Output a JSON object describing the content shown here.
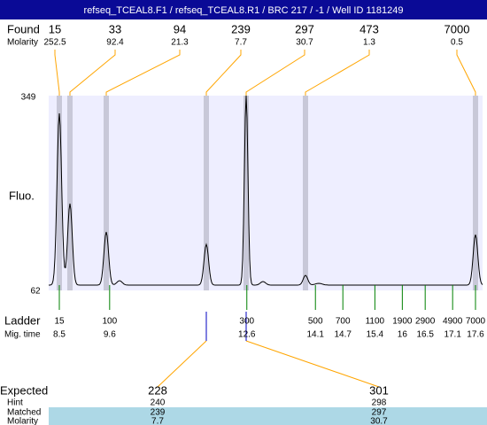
{
  "header": {
    "title": "refseq_TCEAL8.F1 / refseq_TCEAL8.R1 / BRC 217 / -1 / Well ID 1181249"
  },
  "found": {
    "label": "Found",
    "molarity_label": "Molarity",
    "peaks": [
      {
        "size": 15,
        "molarity": 252.5
      },
      {
        "size": 33,
        "molarity": 92.4
      },
      {
        "size": 94,
        "molarity": 21.3
      },
      {
        "size": 239,
        "molarity": 7.7
      },
      {
        "size": 297,
        "molarity": 30.7
      },
      {
        "size": 473,
        "molarity": 1.3
      },
      {
        "size": 7000,
        "molarity": 0.5
      }
    ]
  },
  "plot": {
    "y_label": "Fluo.",
    "y_max": 349,
    "y_min": 62
  },
  "ladder": {
    "label": "Ladder",
    "time_label": "Mig. time",
    "items": [
      {
        "size": 15,
        "time": 8.5
      },
      {
        "size": 100,
        "time": 9.6
      },
      {
        "size": 300,
        "time": 12.6
      },
      {
        "size": 500,
        "time": 14.1
      },
      {
        "size": 700,
        "time": 14.7
      },
      {
        "size": 1100,
        "time": 15.4
      },
      {
        "size": 1900,
        "time": 16
      },
      {
        "size": 2900,
        "time": 16.5
      },
      {
        "size": 4900,
        "time": 17.1
      },
      {
        "size": 7000,
        "time": 17.6
      }
    ]
  },
  "expected": {
    "labels": [
      "Expected",
      "Hint",
      "Matched",
      "Molarity"
    ],
    "columns": [
      {
        "expected": 228,
        "hint": 240,
        "matched": 239,
        "molarity": 7.7
      },
      {
        "expected": 301,
        "hint": 298,
        "matched": 297,
        "molarity": 30.7
      }
    ]
  }
}
